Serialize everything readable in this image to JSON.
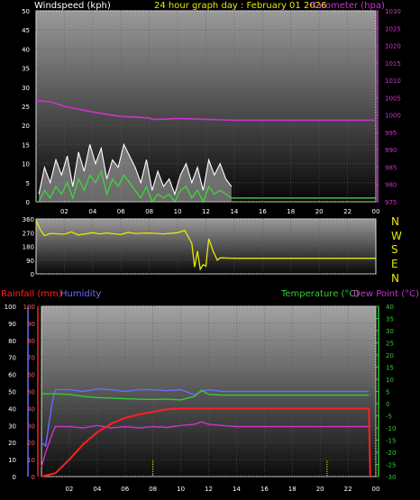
{
  "header": {
    "windspeed_label": "Windspeed (kph)",
    "title": "24 hour graph day : February 01 2026",
    "barometer_label": "Barometer (hpa)"
  },
  "compass_labels": [
    "N",
    "W",
    "S",
    "E",
    "N"
  ],
  "bottom_header": {
    "rainfall_label": "Rainfall (mm)",
    "humidity_label": "Humidity",
    "temperature_label": "Temperature (°C)",
    "dewpoint_label": "Dew Point (°C)"
  },
  "colors": {
    "windspeed": "#ffffff",
    "wind_gust_fill": "#b9b9b9",
    "wind_avg": "#3ed63e",
    "barometer": "#cc33cc",
    "wind_direction": "#e8e800",
    "rainfall": "#ff2020",
    "humidity": "#6a6aff",
    "temperature": "#33cc33",
    "dew_point": "#cc33cc"
  },
  "chart_data": [
    {
      "type": "area",
      "panel": "wind_barometer",
      "x_ticks": [
        "02",
        "04",
        "06",
        "08",
        "10",
        "12",
        "14",
        "16",
        "18",
        "20",
        "22",
        "00"
      ],
      "xlim_hours": [
        0,
        24
      ],
      "left_axis": {
        "label": "Windspeed (kph)",
        "ylim": [
          0,
          50
        ],
        "ticks": [
          "0",
          "5",
          "10",
          "15",
          "20",
          "25",
          "30",
          "35",
          "40",
          "45",
          "50"
        ]
      },
      "right_axis": {
        "label": "Barometer (hpa)",
        "ylim": [
          975,
          1030
        ],
        "ticks": [
          "975",
          "980",
          "985",
          "990",
          "995",
          "1000",
          "1005",
          "1010",
          "1015",
          "1020",
          "1025",
          "1030"
        ]
      },
      "series": [
        {
          "name": "Barometer (hpa)",
          "x": [
            0,
            1,
            2,
            3,
            4,
            5,
            6,
            7,
            8,
            8.3,
            9,
            10,
            11,
            12,
            13,
            14,
            16,
            18,
            20,
            22,
            24
          ],
          "values": [
            1004.2,
            1003.8,
            1002.5,
            1001.7,
            1000.9,
            1000.2,
            999.6,
            999.4,
            999.1,
            998.7,
            998.8,
            999.0,
            998.9,
            998.7,
            998.6,
            998.5,
            998.5,
            998.5,
            998.5,
            998.5,
            998.5
          ]
        },
        {
          "name": "Windspeed (kph)",
          "x": [
            0.2,
            0.6,
            1.0,
            1.4,
            1.8,
            2.2,
            2.6,
            3.0,
            3.4,
            3.8,
            4.2,
            4.6,
            5.0,
            5.4,
            5.8,
            6.2,
            6.6,
            7.0,
            7.4,
            7.8,
            8.2,
            8.6,
            9.0,
            9.4,
            9.8,
            10.2,
            10.6,
            11.0,
            11.4,
            11.8,
            12.2,
            12.6,
            13.0,
            13.4,
            13.8
          ],
          "values": [
            2,
            9,
            5,
            11,
            7,
            12,
            4,
            13,
            8,
            15,
            10,
            14,
            6,
            11,
            9,
            15,
            12,
            9,
            5,
            11,
            3,
            8,
            4,
            6,
            2,
            7,
            10,
            5,
            9,
            3,
            11,
            7,
            10,
            6,
            4
          ]
        },
        {
          "name": "Wind average (kph)",
          "x": [
            0.2,
            0.6,
            1.0,
            1.4,
            1.8,
            2.2,
            2.6,
            3.0,
            3.4,
            3.8,
            4.2,
            4.6,
            5.0,
            5.4,
            5.8,
            6.2,
            6.6,
            7.0,
            7.4,
            7.8,
            8.2,
            8.6,
            9.0,
            9.4,
            9.8,
            10.2,
            10.6,
            11.0,
            11.4,
            11.8,
            12.2,
            12.6,
            13.0,
            13.4,
            13.8,
            14,
            24
          ],
          "values": [
            0,
            3,
            1,
            4,
            2,
            5,
            1,
            6,
            3,
            7,
            5,
            8,
            2,
            6,
            4,
            7,
            5,
            3,
            1,
            4,
            0,
            2,
            1,
            2,
            0,
            3,
            4,
            1,
            3,
            0,
            4,
            2,
            3,
            2,
            1,
            1,
            1
          ]
        }
      ]
    },
    {
      "type": "line",
      "panel": "wind_direction",
      "x_ticks": [],
      "xlim_hours": [
        0,
        24
      ],
      "left_axis": {
        "ylim": [
          0,
          360
        ],
        "ticks": [
          "0",
          "90",
          "180",
          "270",
          "360"
        ]
      },
      "right_labels": [
        "N",
        "W",
        "S",
        "E",
        "N"
      ],
      "series": [
        {
          "name": "Wind direction (deg)",
          "x": [
            0,
            0.3,
            0.6,
            1,
            2,
            2.5,
            3,
            4,
            4.5,
            5,
            6,
            6.5,
            7,
            8,
            9,
            10,
            10.5,
            11,
            11.2,
            11.4,
            11.6,
            11.8,
            12.0,
            12.2,
            12.5,
            12.8,
            13,
            14,
            16,
            18,
            20,
            22,
            24
          ],
          "values": [
            350,
            290,
            250,
            265,
            260,
            275,
            255,
            270,
            262,
            268,
            258,
            272,
            265,
            268,
            262,
            270,
            285,
            200,
            45,
            150,
            30,
            60,
            50,
            230,
            150,
            90,
            105,
            102,
            102,
            102,
            102,
            102,
            102
          ]
        }
      ]
    },
    {
      "type": "line",
      "panel": "rain_humidity_temperature",
      "x_ticks": [
        "02",
        "04",
        "06",
        "08",
        "10",
        "12",
        "14",
        "16",
        "18",
        "20",
        "22",
        "00"
      ],
      "xlim_hours": [
        0,
        24
      ],
      "left_axis_outer": {
        "label": "Humidity",
        "ylim": [
          0,
          100
        ],
        "ticks": [
          "0",
          "10",
          "20",
          "30",
          "40",
          "50",
          "60",
          "70",
          "80",
          "90",
          "100"
        ]
      },
      "left_axis_inner": {
        "label": "Rainfall (mm)",
        "ylim": [
          0,
          100
        ],
        "ticks": [
          "0",
          "10",
          "20",
          "30",
          "40",
          "50",
          "60",
          "70",
          "80",
          "90",
          "100"
        ]
      },
      "right_axis": {
        "label": "Temperature (°C) / Dew Point (°C)",
        "ylim": [
          -30,
          40
        ],
        "ticks": [
          "-30",
          "-25",
          "-20",
          "-15",
          "-10",
          "-5",
          "0",
          "5",
          "10",
          "15",
          "20",
          "25",
          "30",
          "35",
          "40"
        ]
      },
      "series": [
        {
          "name": "Rainfall (mm)",
          "x": [
            0,
            1,
            2,
            3,
            4,
            5,
            6,
            7,
            8,
            9,
            10,
            11,
            12,
            13,
            14,
            16,
            18,
            20,
            22,
            23.5,
            23.6
          ],
          "values": [
            0,
            2,
            10,
            19,
            26,
            31,
            34.5,
            36.5,
            38,
            39.5,
            40,
            40,
            40,
            40,
            40,
            40,
            40,
            40,
            40,
            40,
            0
          ]
        },
        {
          "name": "Humidity",
          "x": [
            0,
            0.3,
            0.8,
            1,
            2,
            3,
            4,
            5,
            6,
            7,
            8,
            9,
            10,
            11,
            11.5,
            12,
            13,
            14,
            16,
            18,
            20,
            22,
            23.5
          ],
          "values": [
            20,
            18,
            45,
            51,
            51,
            50,
            51.5,
            51,
            50,
            51,
            51,
            50.5,
            51,
            48,
            50,
            51,
            50,
            50,
            50,
            50,
            50,
            50,
            50
          ]
        },
        {
          "name": "Temperature (°C)",
          "x": [
            0,
            1,
            2,
            3,
            4,
            5,
            6,
            7,
            8,
            9,
            10,
            11,
            11.5,
            12,
            13,
            14,
            16,
            18,
            20,
            22,
            23.5
          ],
          "values": [
            4,
            4,
            3.8,
            3,
            2.5,
            2.3,
            2,
            1.8,
            1.7,
            1.9,
            1.5,
            3,
            5.5,
            3.8,
            3.5,
            3.5,
            3.5,
            3.5,
            3.5,
            3.5,
            3.5
          ]
        },
        {
          "name": "Dew Point (°C)",
          "x": [
            0,
            0.3,
            0.8,
            1,
            2,
            3,
            4,
            5,
            6,
            7,
            8,
            9,
            10,
            11,
            11.5,
            12,
            13,
            14,
            16,
            18,
            20,
            22,
            23.5
          ],
          "values": [
            -26,
            -20,
            -12,
            -9.5,
            -9.5,
            -10,
            -9,
            -10,
            -9.5,
            -10,
            -9.5,
            -9.8,
            -9,
            -8.5,
            -7.5,
            -8.5,
            -9,
            -9.5,
            -9.5,
            -9.5,
            -9.5,
            -9.5,
            -9.5
          ]
        }
      ],
      "markers_x_hours": [
        8,
        20.5
      ]
    }
  ]
}
